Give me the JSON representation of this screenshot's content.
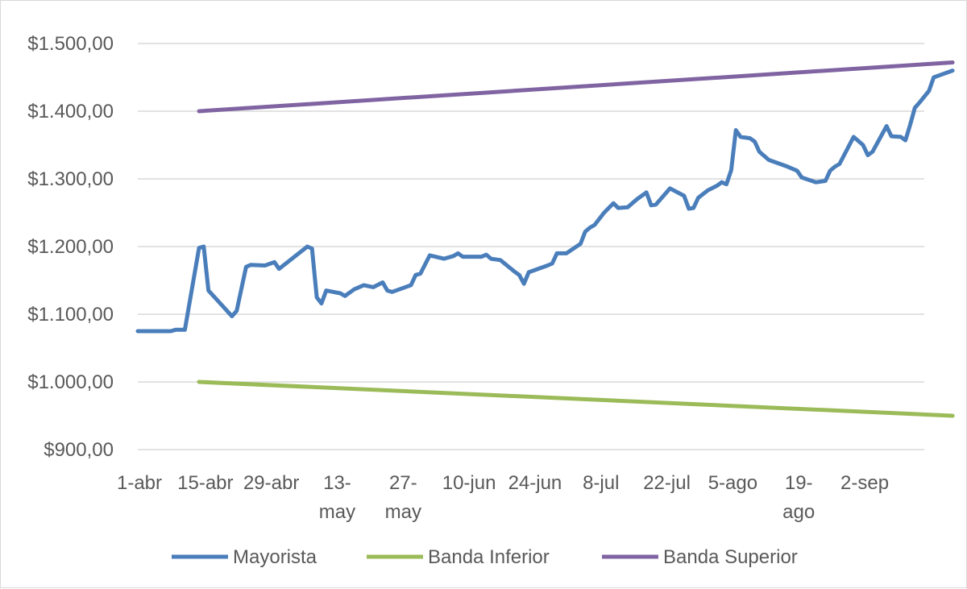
{
  "chart_data": {
    "type": "line",
    "title": "",
    "xlabel": "",
    "ylabel": "",
    "ylim": [
      900,
      1500
    ],
    "y_ticks": [
      "$1.500,00",
      "$1.400,00",
      "$1.300,00",
      "$1.200,00",
      "$1.100,00",
      "$1.000,00",
      "$900,00"
    ],
    "y_tick_values": [
      1500,
      1400,
      1300,
      1200,
      1100,
      1000,
      900
    ],
    "x_range": [
      "2025-04-01",
      "2025-09-15"
    ],
    "x_tick_labels": [
      {
        "date": "2025-04-01",
        "lines": [
          "1-abr"
        ]
      },
      {
        "date": "2025-04-15",
        "lines": [
          "15-abr"
        ]
      },
      {
        "date": "2025-04-29",
        "lines": [
          "29-abr"
        ]
      },
      {
        "date": "2025-05-13",
        "lines": [
          "13-",
          "may"
        ]
      },
      {
        "date": "2025-05-27",
        "lines": [
          "27-",
          "may"
        ]
      },
      {
        "date": "2025-06-10",
        "lines": [
          "10-jun"
        ]
      },
      {
        "date": "2025-06-24",
        "lines": [
          "24-jun"
        ]
      },
      {
        "date": "2025-07-08",
        "lines": [
          "8-jul"
        ]
      },
      {
        "date": "2025-07-22",
        "lines": [
          "22-jul"
        ]
      },
      {
        "date": "2025-08-05",
        "lines": [
          "5-ago"
        ]
      },
      {
        "date": "2025-08-19",
        "lines": [
          "19-",
          "ago"
        ]
      },
      {
        "date": "2025-09-02",
        "lines": [
          "2-sep"
        ]
      }
    ],
    "grid": true,
    "legend_position": "bottom",
    "series": [
      {
        "name": "Mayorista",
        "color": "#4a7ebb",
        "points": [
          [
            "2025-04-01",
            1075
          ],
          [
            "2025-04-08",
            1075
          ],
          [
            "2025-04-09",
            1077
          ],
          [
            "2025-04-11",
            1077
          ],
          [
            "2025-04-14",
            1198
          ],
          [
            "2025-04-15",
            1200
          ],
          [
            "2025-04-16",
            1135
          ],
          [
            "2025-04-21",
            1097
          ],
          [
            "2025-04-22",
            1105
          ],
          [
            "2025-04-24",
            1170
          ],
          [
            "2025-04-25",
            1173
          ],
          [
            "2025-04-28",
            1172
          ],
          [
            "2025-04-30",
            1177
          ],
          [
            "2025-05-01",
            1167
          ],
          [
            "2025-05-07",
            1200
          ],
          [
            "2025-05-08",
            1197
          ],
          [
            "2025-05-09",
            1125
          ],
          [
            "2025-05-10",
            1116
          ],
          [
            "2025-05-11",
            1135
          ],
          [
            "2025-05-14",
            1131
          ],
          [
            "2025-05-15",
            1127
          ],
          [
            "2025-05-17",
            1137
          ],
          [
            "2025-05-19",
            1143
          ],
          [
            "2025-05-21",
            1140
          ],
          [
            "2025-05-23",
            1147
          ],
          [
            "2025-05-24",
            1135
          ],
          [
            "2025-05-25",
            1133
          ],
          [
            "2025-05-29",
            1143
          ],
          [
            "2025-05-30",
            1158
          ],
          [
            "2025-05-31",
            1160
          ],
          [
            "2025-06-02",
            1187
          ],
          [
            "2025-06-05",
            1182
          ],
          [
            "2025-06-07",
            1186
          ],
          [
            "2025-06-08",
            1190
          ],
          [
            "2025-06-09",
            1185
          ],
          [
            "2025-06-13",
            1185
          ],
          [
            "2025-06-14",
            1188
          ],
          [
            "2025-06-15",
            1182
          ],
          [
            "2025-06-17",
            1180
          ],
          [
            "2025-06-20",
            1163
          ],
          [
            "2025-06-21",
            1158
          ],
          [
            "2025-06-22",
            1145
          ],
          [
            "2025-06-23",
            1162
          ],
          [
            "2025-06-27",
            1172
          ],
          [
            "2025-06-28",
            1175
          ],
          [
            "2025-06-29",
            1190
          ],
          [
            "2025-07-01",
            1190
          ],
          [
            "2025-07-04",
            1204
          ],
          [
            "2025-07-05",
            1222
          ],
          [
            "2025-07-06",
            1228
          ],
          [
            "2025-07-07",
            1232
          ],
          [
            "2025-07-09",
            1250
          ],
          [
            "2025-07-11",
            1264
          ],
          [
            "2025-07-12",
            1257
          ],
          [
            "2025-07-14",
            1258
          ],
          [
            "2025-07-16",
            1270
          ],
          [
            "2025-07-18",
            1280
          ],
          [
            "2025-07-19",
            1261
          ],
          [
            "2025-07-20",
            1262
          ],
          [
            "2025-07-23",
            1286
          ],
          [
            "2025-07-26",
            1275
          ],
          [
            "2025-07-27",
            1256
          ],
          [
            "2025-07-28",
            1257
          ],
          [
            "2025-07-29",
            1272
          ],
          [
            "2025-07-31",
            1283
          ],
          [
            "2025-08-02",
            1290
          ],
          [
            "2025-08-03",
            1295
          ],
          [
            "2025-08-04",
            1292
          ],
          [
            "2025-08-05",
            1313
          ],
          [
            "2025-08-06",
            1372
          ],
          [
            "2025-08-07",
            1362
          ],
          [
            "2025-08-09",
            1360
          ],
          [
            "2025-08-10",
            1355
          ],
          [
            "2025-08-11",
            1340
          ],
          [
            "2025-08-13",
            1328
          ],
          [
            "2025-08-17",
            1318
          ],
          [
            "2025-08-19",
            1312
          ],
          [
            "2025-08-20",
            1302
          ],
          [
            "2025-08-23",
            1295
          ],
          [
            "2025-08-25",
            1297
          ],
          [
            "2025-08-26",
            1312
          ],
          [
            "2025-08-27",
            1318
          ],
          [
            "2025-08-28",
            1322
          ],
          [
            "2025-08-31",
            1362
          ],
          [
            "2025-09-02",
            1350
          ],
          [
            "2025-09-03",
            1335
          ],
          [
            "2025-09-04",
            1340
          ],
          [
            "2025-09-07",
            1378
          ],
          [
            "2025-09-08",
            1363
          ],
          [
            "2025-09-10",
            1362
          ],
          [
            "2025-09-11",
            1357
          ],
          [
            "2025-09-12",
            1380
          ],
          [
            "2025-09-13",
            1405
          ],
          [
            "2025-09-14",
            1413
          ],
          [
            "2025-09-16",
            1430
          ],
          [
            "2025-09-17",
            1450
          ],
          [
            "2025-09-19",
            1455
          ],
          [
            "2025-09-21",
            1460
          ]
        ]
      },
      {
        "name": "Banda Inferior",
        "color": "#9bbb59",
        "points": [
          [
            "2025-04-14",
            1000
          ],
          [
            "2025-09-21",
            950
          ]
        ]
      },
      {
        "name": "Banda Superior",
        "color": "#8064a2",
        "points": [
          [
            "2025-04-14",
            1400
          ],
          [
            "2025-09-21",
            1472
          ]
        ]
      }
    ]
  }
}
